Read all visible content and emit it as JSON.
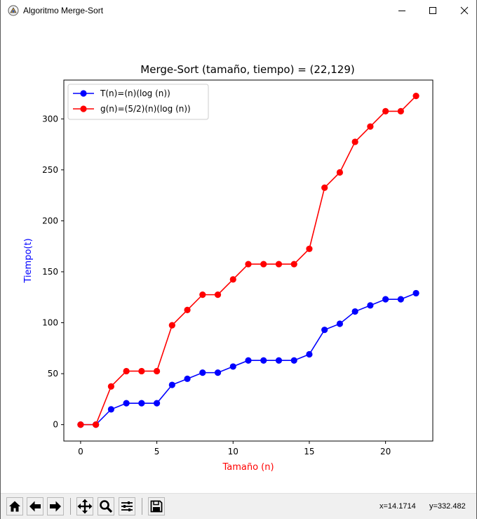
{
  "window": {
    "title": "Algoritmo Merge-Sort"
  },
  "toolbar": {
    "buttons": [
      "home-icon",
      "back-icon",
      "forward-icon",
      "pan-icon",
      "zoom-icon",
      "configure-subplots-icon",
      "save-icon"
    ],
    "coord_x": "x=14.1714",
    "coord_y": "y=332.482"
  },
  "chart_data": {
    "type": "line",
    "title": "Merge-Sort (tamaño, tiempo) = (22,129)",
    "xlabel": "Tamaño (n)",
    "ylabel": "Tiempo(t)",
    "xlabel_color": "#ff0000",
    "ylabel_color": "#0000ff",
    "xlim": [
      -1.1,
      23.1
    ],
    "ylim": [
      -16.1,
      338.1
    ],
    "xticks": [
      0,
      5,
      10,
      15,
      20
    ],
    "yticks": [
      0,
      50,
      100,
      150,
      200,
      250,
      300
    ],
    "x": [
      0,
      1,
      2,
      3,
      4,
      5,
      6,
      7,
      8,
      9,
      10,
      11,
      12,
      13,
      14,
      15,
      16,
      17,
      18,
      19,
      20,
      21,
      22
    ],
    "legend_position": "top-left",
    "grid": false,
    "series": [
      {
        "name": "T(n)=(n)(log (n))",
        "color": "#0000ff",
        "values": [
          0,
          0,
          15,
          21,
          21,
          21,
          39,
          45,
          51,
          51,
          57,
          63,
          63,
          63,
          63,
          69,
          93,
          99,
          111,
          117,
          123,
          123,
          129
        ]
      },
      {
        "name": "g(n)=(5/2)(n)(log (n))",
        "color": "#ff0000",
        "values": [
          0,
          0,
          37.5,
          52.5,
          52.5,
          52.5,
          97.5,
          112.5,
          127.5,
          127.5,
          142.5,
          157.5,
          157.5,
          157.5,
          157.5,
          172.5,
          232.5,
          247.5,
          277.5,
          292.5,
          307.5,
          307.5,
          322.5
        ]
      }
    ]
  }
}
